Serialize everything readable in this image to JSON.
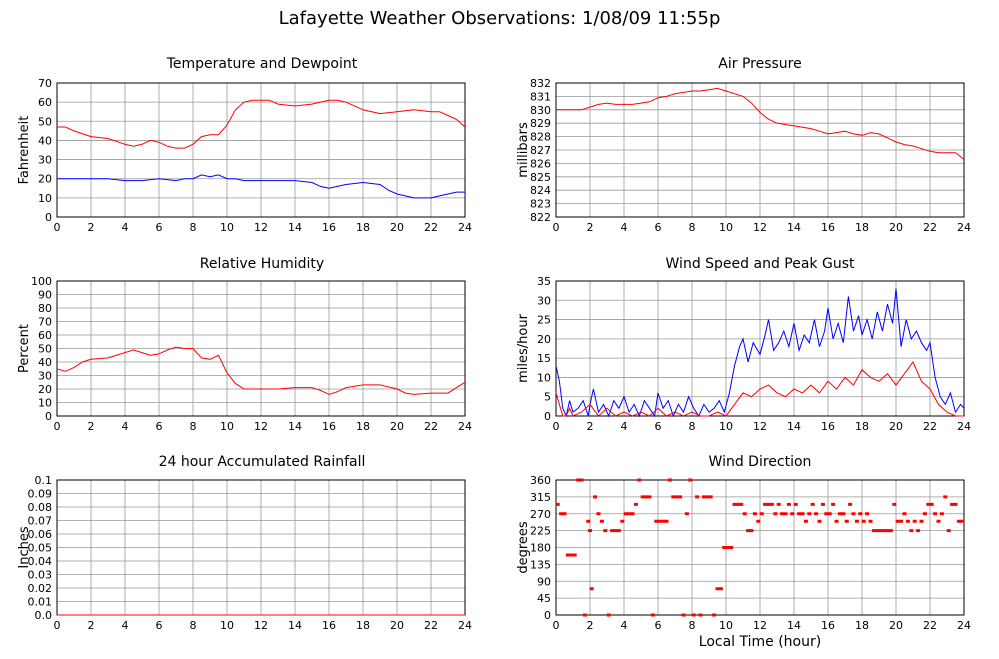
{
  "page": {
    "title": "Lafayette Weather Observations: 1/08/09 11:55p",
    "footer_xlabel": "Local Time (hour)"
  },
  "colors": {
    "temperature": "#ff0000",
    "dewpoint": "#0000ff",
    "grid": "#999999",
    "frame": "#000000"
  },
  "chart_data": [
    {
      "id": "temp",
      "type": "line",
      "title": "Temperature and Dewpoint",
      "ylabel": "Fahrenheit",
      "xlim": [
        0,
        24
      ],
      "ylim": [
        0,
        70
      ],
      "xticks": [
        "0",
        "2",
        "4",
        "6",
        "8",
        "10",
        "12",
        "14",
        "16",
        "18",
        "20",
        "22",
        "24"
      ],
      "yticks": [
        "0",
        "10",
        "20",
        "30",
        "40",
        "50",
        "60",
        "70"
      ],
      "grid": true,
      "series": [
        {
          "color": "#ff0000",
          "x": [
            0,
            0.5,
            1,
            2,
            3,
            4,
            4.5,
            5,
            5.5,
            6,
            6.5,
            7,
            7.5,
            8,
            8.5,
            9,
            9.5,
            10,
            10.5,
            11,
            11.5,
            12,
            12.5,
            13,
            14,
            15,
            15.5,
            16,
            16.5,
            17,
            18,
            19,
            20,
            21,
            22,
            22.5,
            23,
            23.5,
            24
          ],
          "y": [
            47,
            47,
            45,
            42,
            41,
            38,
            37,
            38,
            40,
            39,
            37,
            36,
            36,
            38,
            42,
            43,
            43,
            48,
            56,
            60,
            61,
            61,
            61,
            59,
            58,
            59,
            60,
            61,
            61,
            60,
            56,
            54,
            55,
            56,
            55,
            55,
            53,
            51,
            47
          ]
        },
        {
          "color": "#0000ff",
          "x": [
            0,
            1,
            2,
            3,
            4,
            5,
            6,
            7,
            7.5,
            8,
            8.5,
            9,
            9.5,
            10,
            10.5,
            11,
            12,
            13,
            14,
            15,
            15.5,
            16,
            16.5,
            17,
            18,
            19,
            19.5,
            20,
            21,
            22,
            22.5,
            23,
            23.5,
            24
          ],
          "y": [
            20,
            20,
            20,
            20,
            19,
            19,
            20,
            19,
            20,
            20,
            22,
            21,
            22,
            20,
            20,
            19,
            19,
            19,
            19,
            18,
            16,
            15,
            16,
            17,
            18,
            17,
            14,
            12,
            10,
            10,
            11,
            12,
            13,
            13
          ]
        }
      ]
    },
    {
      "id": "pressure",
      "type": "line",
      "title": "Air Pressure",
      "ylabel": "millibars",
      "xlim": [
        0,
        24
      ],
      "ylim": [
        822,
        832
      ],
      "xticks": [
        "0",
        "2",
        "4",
        "6",
        "8",
        "10",
        "12",
        "14",
        "16",
        "18",
        "20",
        "22",
        "24"
      ],
      "yticks": [
        "822",
        "823",
        "824",
        "825",
        "826",
        "827",
        "828",
        "829",
        "830",
        "831",
        "832"
      ],
      "grid": true,
      "series": [
        {
          "color": "#ff0000",
          "x": [
            0,
            0.5,
            1,
            1.5,
            2,
            2.5,
            3,
            3.5,
            4,
            4.5,
            5,
            5.5,
            6,
            6.5,
            7,
            7.5,
            8,
            8.5,
            9,
            9.5,
            10,
            10.5,
            11,
            11.5,
            12,
            12.5,
            13,
            13.5,
            14,
            14.5,
            15,
            15.5,
            16,
            16.5,
            17,
            17.5,
            18,
            18.5,
            19,
            19.5,
            20,
            20.5,
            21,
            21.5,
            22,
            22.5,
            23,
            23.5,
            24
          ],
          "y": [
            830,
            830,
            830,
            830,
            830.2,
            830.4,
            830.5,
            830.4,
            830.4,
            830.4,
            830.5,
            830.6,
            830.9,
            831,
            831.2,
            831.3,
            831.4,
            831.4,
            831.5,
            831.6,
            831.4,
            831.2,
            831,
            830.5,
            829.8,
            829.3,
            829,
            828.9,
            828.8,
            828.7,
            828.6,
            828.4,
            828.2,
            828.3,
            828.4,
            828.2,
            828.1,
            828.3,
            828.2,
            827.9,
            827.6,
            827.4,
            827.3,
            827.1,
            826.9,
            826.8,
            826.8,
            826.8,
            826.3
          ]
        }
      ]
    },
    {
      "id": "humidity",
      "type": "line",
      "title": "Relative Humidity",
      "ylabel": "Percent",
      "xlim": [
        0,
        24
      ],
      "ylim": [
        0,
        100
      ],
      "xticks": [
        "0",
        "2",
        "4",
        "6",
        "8",
        "10",
        "12",
        "14",
        "16",
        "18",
        "20",
        "22",
        "24"
      ],
      "yticks": [
        "0",
        "10",
        "20",
        "30",
        "40",
        "50",
        "60",
        "70",
        "80",
        "90",
        "100"
      ],
      "grid": true,
      "series": [
        {
          "color": "#ff0000",
          "x": [
            0,
            0.5,
            1,
            1.5,
            2,
            3,
            4,
            4.5,
            5,
            5.5,
            6,
            6.5,
            7,
            7.5,
            8,
            8.5,
            9,
            9.5,
            10,
            10.5,
            11,
            12,
            13,
            14,
            15,
            15.5,
            16,
            16.5,
            17,
            18,
            19,
            20,
            20.5,
            21,
            22,
            23,
            23.5,
            24
          ],
          "y": [
            35,
            33,
            36,
            40,
            42,
            43,
            47,
            49,
            47,
            45,
            46,
            49,
            51,
            50,
            50,
            43,
            42,
            45,
            32,
            24,
            20,
            20,
            20,
            21,
            21,
            19,
            16,
            18,
            21,
            23,
            23,
            20,
            17,
            16,
            17,
            17,
            21,
            25
          ]
        }
      ]
    },
    {
      "id": "wind",
      "type": "line",
      "title": "Wind Speed and Peak Gust",
      "ylabel": "miles/hour",
      "xlim": [
        0,
        24
      ],
      "ylim": [
        0,
        35
      ],
      "xticks": [
        "0",
        "2",
        "4",
        "6",
        "8",
        "10",
        "12",
        "14",
        "16",
        "18",
        "20",
        "22",
        "24"
      ],
      "yticks": [
        "0",
        "5",
        "10",
        "15",
        "20",
        "25",
        "30",
        "35"
      ],
      "grid": true,
      "series": [
        {
          "color": "#0000ff",
          "x": [
            0,
            0.2,
            0.4,
            0.6,
            0.8,
            1,
            1.3,
            1.6,
            1.9,
            2,
            2.2,
            2.5,
            2.8,
            3.1,
            3.4,
            3.7,
            4,
            4.3,
            4.6,
            4.9,
            5.2,
            5.5,
            5.8,
            6,
            6.3,
            6.6,
            6.9,
            7.2,
            7.5,
            7.8,
            8.1,
            8.4,
            8.7,
            9,
            9.3,
            9.6,
            9.9,
            10.2,
            10.5,
            10.8,
            11,
            11.3,
            11.6,
            12,
            12.3,
            12.5,
            12.8,
            13.1,
            13.4,
            13.7,
            14,
            14.3,
            14.6,
            14.9,
            15.2,
            15.5,
            15.8,
            16,
            16.3,
            16.6,
            16.9,
            17.2,
            17.5,
            17.8,
            18,
            18.3,
            18.6,
            18.9,
            19.2,
            19.5,
            19.8,
            20,
            20.3,
            20.6,
            20.9,
            21.2,
            21.5,
            21.8,
            22,
            22.3,
            22.6,
            22.9,
            23.2,
            23.5,
            23.8,
            24
          ],
          "y": [
            13,
            9,
            2,
            0,
            4,
            1,
            2,
            4,
            0,
            3,
            7,
            1,
            3,
            0,
            4,
            2,
            5,
            1,
            3,
            0,
            4,
            2,
            0,
            6,
            2,
            4,
            0,
            3,
            1,
            5,
            2,
            0,
            3,
            1,
            2,
            4,
            1,
            6,
            13,
            18,
            20,
            14,
            19,
            16,
            21,
            25,
            17,
            19,
            22,
            18,
            24,
            17,
            21,
            19,
            25,
            18,
            22,
            28,
            20,
            24,
            19,
            31,
            22,
            26,
            21,
            25,
            20,
            27,
            22,
            29,
            24,
            33,
            18,
            25,
            20,
            22,
            19,
            17,
            19,
            10,
            5,
            3,
            6,
            1,
            3,
            2
          ],
          "points": false
        },
        {
          "color": "#ff0000",
          "x": [
            0,
            0.2,
            0.4,
            0.6,
            0.8,
            1,
            1.5,
            2,
            2.5,
            3,
            3.5,
            4,
            4.5,
            5,
            5.5,
            6,
            6.5,
            7,
            7.5,
            8,
            8.5,
            9,
            9.5,
            10,
            10.5,
            11,
            11.5,
            12,
            12.5,
            13,
            13.5,
            14,
            14.5,
            15,
            15.5,
            16,
            16.5,
            17,
            17.5,
            18,
            18.5,
            19,
            19.5,
            20,
            20.5,
            21,
            21.5,
            22,
            22.5,
            23,
            23.5,
            24
          ],
          "y": [
            6,
            3,
            0,
            0,
            2,
            0,
            1,
            3,
            0,
            2,
            0,
            1,
            0,
            1,
            0,
            2,
            0,
            1,
            0,
            1,
            0,
            0,
            1,
            0,
            3,
            6,
            5,
            7,
            8,
            6,
            5,
            7,
            6,
            8,
            6,
            9,
            7,
            10,
            8,
            12,
            10,
            9,
            11,
            8,
            11,
            14,
            9,
            7,
            3,
            1,
            0,
            0
          ],
          "points": false
        }
      ]
    },
    {
      "id": "rain",
      "type": "line",
      "title": "24 hour Accumulated Rainfall",
      "ylabel": "Inches",
      "xlim": [
        0,
        24
      ],
      "ylim": [
        0,
        0.1
      ],
      "xticks": [
        "0",
        "2",
        "4",
        "6",
        "8",
        "10",
        "12",
        "14",
        "16",
        "18",
        "20",
        "22",
        "24"
      ],
      "yticks": [
        "0.0",
        "0.01",
        "0.02",
        "0.03",
        "0.04",
        "0.05",
        "0.06",
        "0.07",
        "0.08",
        "0.09",
        "0.1"
      ],
      "grid": true,
      "series": [
        {
          "color": "#ff0000",
          "x": [
            0,
            24
          ],
          "y": [
            0,
            0
          ]
        }
      ]
    },
    {
      "id": "direction",
      "type": "scatter",
      "title": "Wind Direction",
      "ylabel": "degrees",
      "xlabel": "Local Time (hour)",
      "xlim": [
        0,
        24
      ],
      "ylim": [
        0,
        360
      ],
      "xticks": [
        "0",
        "2",
        "4",
        "6",
        "8",
        "10",
        "12",
        "14",
        "16",
        "18",
        "20",
        "22",
        "24"
      ],
      "yticks": [
        "0",
        "45",
        "90",
        "135",
        "180",
        "225",
        "270",
        "315",
        "360"
      ],
      "grid": true,
      "series": [
        {
          "color": "#ff0000",
          "x": [
            0.1,
            0.3,
            0.5,
            0.7,
            0.9,
            1.1,
            1.3,
            1.5,
            1.7,
            1.9,
            2.0,
            2.1,
            2.3,
            2.5,
            2.7,
            2.9,
            3.1,
            3.3,
            3.5,
            3.7,
            3.9,
            4.1,
            4.3,
            4.5,
            4.7,
            4.9,
            5.1,
            5.3,
            5.5,
            5.7,
            5.9,
            6.1,
            6.3,
            6.5,
            6.7,
            6.9,
            7.1,
            7.3,
            7.5,
            7.7,
            7.9,
            8.1,
            8.3,
            8.5,
            8.7,
            8.9,
            9.1,
            9.3,
            9.5,
            9.7,
            9.9,
            10.1,
            10.3,
            10.5,
            10.7,
            10.9,
            11.1,
            11.3,
            11.5,
            11.7,
            11.9,
            12.1,
            12.3,
            12.5,
            12.7,
            12.9,
            13.1,
            13.3,
            13.5,
            13.7,
            13.9,
            14.1,
            14.3,
            14.5,
            14.7,
            14.9,
            15.1,
            15.3,
            15.5,
            15.7,
            15.9,
            16.1,
            16.3,
            16.5,
            16.7,
            16.9,
            17.1,
            17.3,
            17.5,
            17.7,
            17.9,
            18.1,
            18.3,
            18.5,
            18.7,
            18.9,
            19.1,
            19.3,
            19.5,
            19.7,
            19.9,
            20.1,
            20.3,
            20.5,
            20.7,
            20.9,
            21.1,
            21.3,
            21.5,
            21.7,
            21.9,
            22.1,
            22.3,
            22.5,
            22.7,
            22.9,
            23.1,
            23.3,
            23.5,
            23.7,
            23.9
          ],
          "y": [
            295,
            270,
            270,
            160,
            160,
            160,
            360,
            360,
            0,
            250,
            225,
            70,
            315,
            270,
            250,
            225,
            0,
            225,
            225,
            225,
            250,
            270,
            270,
            270,
            295,
            360,
            315,
            315,
            315,
            0,
            250,
            250,
            250,
            250,
            360,
            315,
            315,
            315,
            0,
            270,
            360,
            0,
            315,
            0,
            315,
            315,
            315,
            0,
            70,
            70,
            180,
            180,
            180,
            295,
            295,
            295,
            270,
            225,
            225,
            270,
            250,
            270,
            295,
            295,
            295,
            270,
            295,
            270,
            270,
            295,
            270,
            295,
            270,
            270,
            250,
            270,
            295,
            270,
            250,
            295,
            270,
            270,
            295,
            250,
            270,
            270,
            250,
            295,
            270,
            250,
            270,
            250,
            270,
            250,
            225,
            225,
            225,
            225,
            225,
            225,
            295,
            250,
            250,
            270,
            250,
            225,
            250,
            225,
            250,
            270,
            295,
            295,
            270,
            250,
            270,
            315,
            225,
            295,
            295,
            250,
            250
          ],
          "points": true
        }
      ]
    }
  ]
}
